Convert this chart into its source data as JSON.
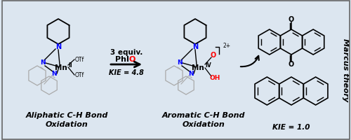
{
  "bg_color": "#dce6f0",
  "arrow_color": "#000000",
  "reaction_text_line1": "3 equiv.",
  "reaction_text_line2": "PhI",
  "reaction_text_O": "O",
  "reaction_kie": "KIE = 4.8",
  "right_kie": "KIE = 1.0",
  "marcus_text": "Marcus theory",
  "label_left_line1": "Aliphatic C-H Bond",
  "label_left_line2": "Oxidation",
  "label_right_line1": "Aromatic C-H Bond",
  "label_right_line2": "Oxidation",
  "charge": "¬2+",
  "O_ligand": "O",
  "OH_ligand": "OH",
  "N_color": "#0000ff",
  "O_color": "#ff0000",
  "text_color": "#000000"
}
